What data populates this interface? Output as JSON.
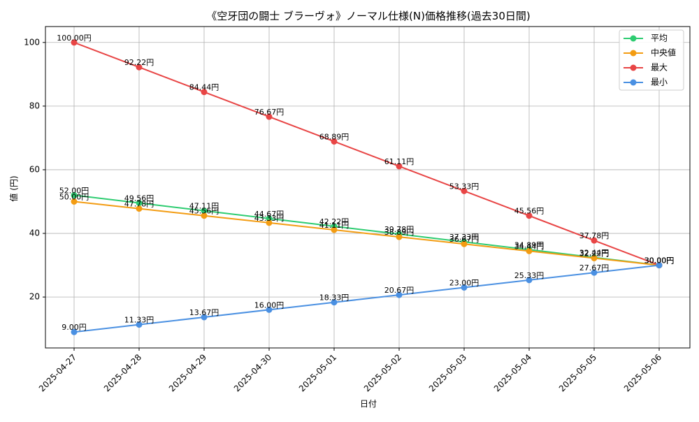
{
  "chart_data": {
    "type": "line",
    "title": "《空牙団の闘士 ブラーヴォ》ノーマル仕様(N)価格推移(過去30日間)",
    "xlabel": "日付",
    "ylabel": "値 (円)",
    "categories": [
      "2025-04-27",
      "2025-04-28",
      "2025-04-29",
      "2025-04-30",
      "2025-05-01",
      "2025-05-02",
      "2025-05-03",
      "2025-05-04",
      "2025-05-05",
      "2025-05-06"
    ],
    "ylim": [
      4,
      105
    ],
    "yticks": [
      20,
      40,
      60,
      80,
      100
    ],
    "grid": true,
    "legend_position": "top-right",
    "label_suffix": "円",
    "series": [
      {
        "name": "平均",
        "color": "#2ecc71",
        "values": [
          52.0,
          49.56,
          47.11,
          44.67,
          42.22,
          39.78,
          37.33,
          34.89,
          32.44,
          30.0
        ]
      },
      {
        "name": "中央値",
        "color": "#f39c12",
        "values": [
          50.0,
          47.78,
          45.56,
          43.33,
          41.11,
          38.89,
          36.67,
          34.44,
          32.22,
          30.0
        ]
      },
      {
        "name": "最大",
        "color": "#e84545",
        "values": [
          100.0,
          92.22,
          84.44,
          76.67,
          68.89,
          61.11,
          53.33,
          45.56,
          37.78,
          30.0
        ]
      },
      {
        "name": "最小",
        "color": "#4a90e2",
        "values": [
          9.0,
          11.33,
          13.67,
          16.0,
          18.33,
          20.67,
          23.0,
          25.33,
          27.67,
          30.0
        ]
      }
    ]
  }
}
